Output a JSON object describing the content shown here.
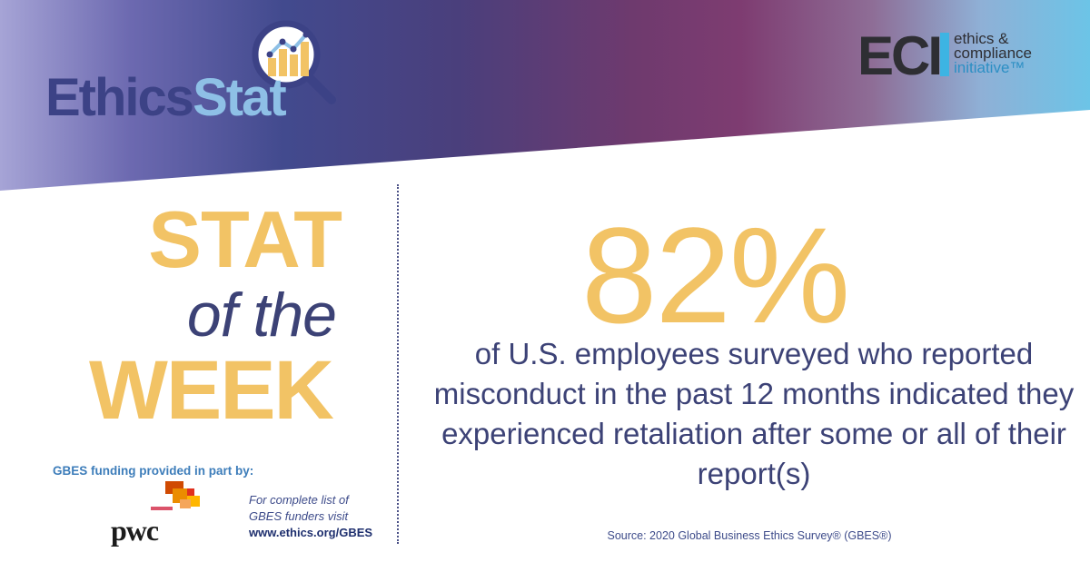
{
  "brand": {
    "logo_word_1": "Ethics",
    "logo_word_2": "Stat",
    "logo_icon": "magnifier-chart-icon",
    "org_acronym": "ECI",
    "org_line_1": "ethics &",
    "org_line_2": "compliance",
    "org_line_3": "initiative™"
  },
  "headline": {
    "stat": "STAT",
    "of_the": "of the",
    "week": "WEEK"
  },
  "stat": {
    "value": "82%",
    "description": "of U.S. employees surveyed who reported misconduct in the past 12 months indicated they experienced retaliation after some or all of their report(s)",
    "source": "Source: 2020 Global Business Ethics Survey® (GBES®)"
  },
  "funding": {
    "label": "GBES funding provided in part by:",
    "sponsor": "pwc",
    "note_line_1": "For complete list of",
    "note_line_2": "GBES funders visit",
    "url": "www.ethics.org/GBES"
  },
  "colors": {
    "accent_gold": "#f2c365",
    "navy": "#3c4276",
    "light_blue": "#8ec0e6",
    "eci_blue": "#3db4e3"
  }
}
